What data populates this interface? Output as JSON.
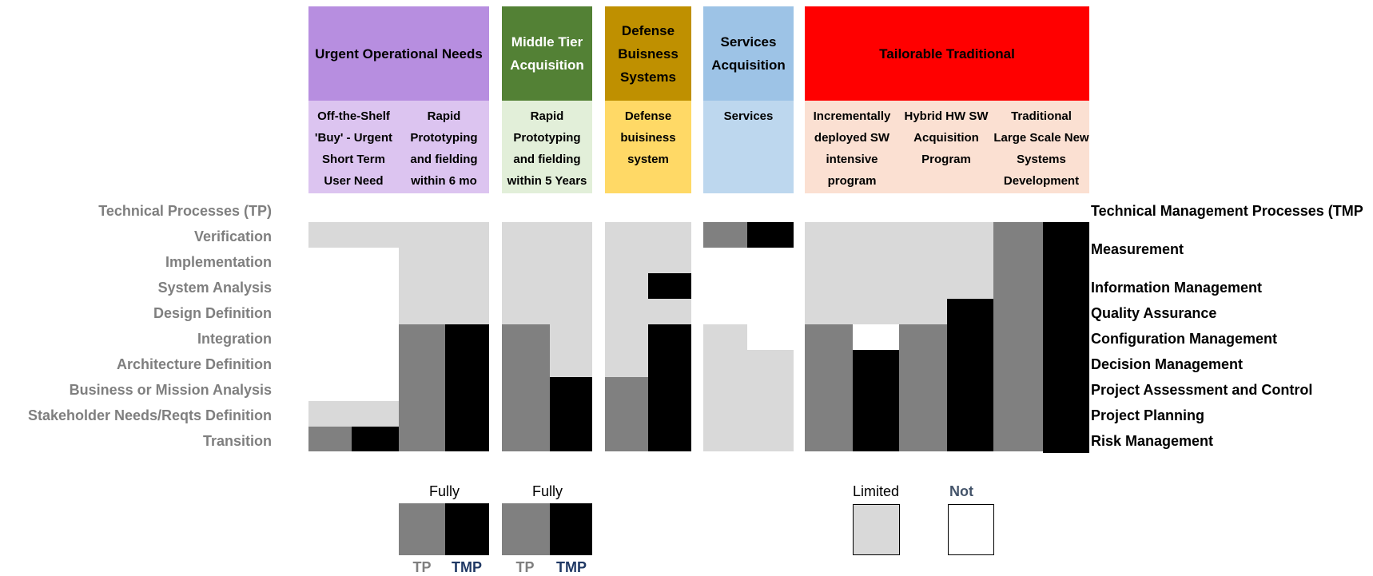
{
  "headers": [
    {
      "key": "uon",
      "label": "Urgent Operational Needs",
      "color": "#b78ee0",
      "text_color": "#000000",
      "sub_color": "#dcc4f0"
    },
    {
      "key": "mta",
      "label": "Middle Tier Acquisition",
      "color": "#538135",
      "text_color": "#ffffff",
      "sub_color": "#e2efd9"
    },
    {
      "key": "dbs",
      "label": "Defense Buisness Systems",
      "color": "#bf9000",
      "text_color": "#000000",
      "sub_color": "#ffd966"
    },
    {
      "key": "svc",
      "label": "Services Acquisition",
      "color": "#9dc3e6",
      "text_color": "#000000",
      "sub_color": "#bdd7ee"
    },
    {
      "key": "tt",
      "label": "Tailorable Traditional",
      "color": "#ff0000",
      "text_color": "#000000",
      "sub_color": "#fbe0d2"
    }
  ],
  "subheaders": [
    "Off-the-Shelf 'Buy' - Urgent Short Term User Need",
    "Rapid Prototyping and fielding within 6 mo",
    "Rapid Prototyping and fielding within 5 Years",
    "Defense buisiness system",
    "Services",
    "Incrementally deployed SW intensive program",
    "Hybrid HW SW Acquisition Program",
    "Traditional Large Scale New Systems Development"
  ],
  "tp_title": "Technical Processes (TP)",
  "tmp_title": "Technical Management Processes (TMP",
  "tp_rows": [
    "Verification",
    "Implementation",
    "System Analysis",
    "Design Definition",
    "Integration",
    "Architecture Definition",
    "Business or Mission Analysis",
    "Stakeholder Needs/Reqts Definition",
    "Transition"
  ],
  "tmp_rows": [
    "Measurement",
    "Information Management",
    "Quality Assurance",
    "Configuration Management",
    "Decision Management",
    "Project Assessment and Control",
    "Project Planning",
    "Risk Management"
  ],
  "legend": {
    "fully_1": "Fully",
    "fully_2": "Fully",
    "limited": "Limited",
    "not": "Not",
    "tp_1": "TP",
    "tmp_1": "TMP",
    "tp_2": "TP",
    "tmp_2": "TMP"
  },
  "colors": {
    "fully_tp": "#808080",
    "fully_tmp": "#000000",
    "limited": "#d9d9d9",
    "not": "#ffffff",
    "tp_label": "#7f7f7f",
    "tmp_label": "#1f3864",
    "not_label": "#44546a"
  }
}
